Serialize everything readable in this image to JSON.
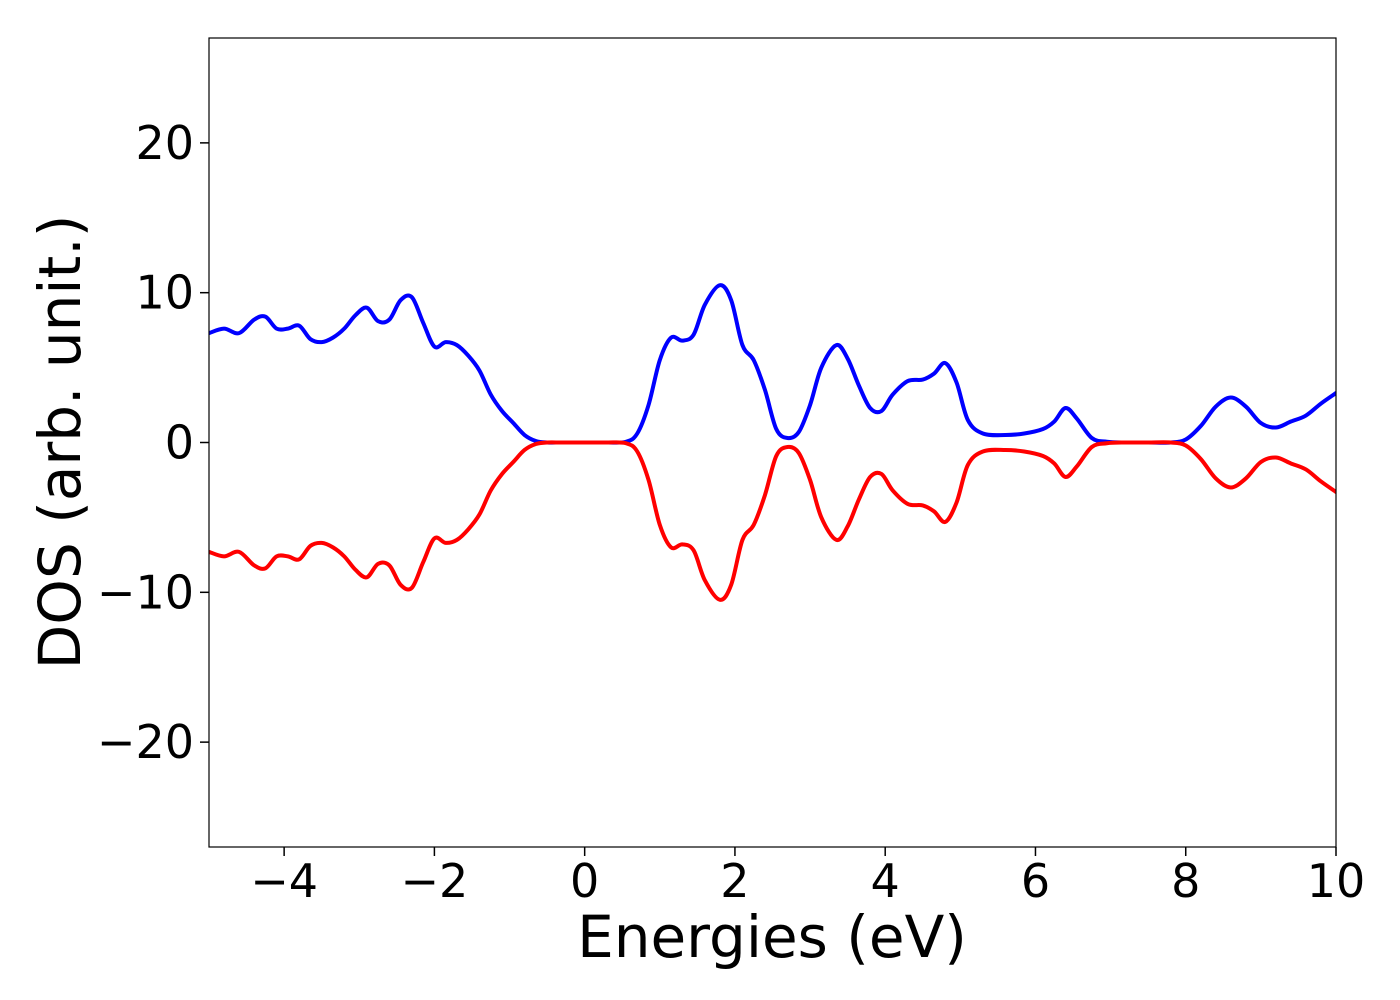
{
  "chart_data": {
    "type": "line",
    "title": "",
    "xlabel": "Energies (eV)",
    "ylabel": "DOS (arb. unit.)",
    "xlim": [
      -5,
      10
    ],
    "ylim": [
      -27,
      27
    ],
    "xticks": [
      -4,
      -2,
      0,
      2,
      4,
      6,
      8,
      10
    ],
    "xtick_labels": [
      "−4",
      "−2",
      "0",
      "2",
      "4",
      "6",
      "8",
      "10"
    ],
    "yticks": [
      -20,
      -10,
      0,
      10,
      20
    ],
    "ytick_labels": [
      "−20",
      "−10",
      "0",
      "10",
      "20"
    ],
    "grid": false,
    "legend": "none",
    "series": [
      {
        "color": "#0000ff",
        "x": [
          -5.0,
          -4.8,
          -4.6,
          -4.4,
          -4.25,
          -4.1,
          -3.95,
          -3.8,
          -3.65,
          -3.5,
          -3.35,
          -3.2,
          -3.05,
          -2.9,
          -2.75,
          -2.6,
          -2.45,
          -2.3,
          -2.15,
          -2.0,
          -1.85,
          -1.7,
          -1.55,
          -1.4,
          -1.25,
          -1.1,
          -0.95,
          -0.8,
          -0.65,
          -0.5,
          -0.3,
          0.0,
          0.3,
          0.55,
          0.7,
          0.85,
          1.0,
          1.15,
          1.3,
          1.45,
          1.6,
          1.8,
          1.95,
          2.1,
          2.25,
          2.4,
          2.55,
          2.7,
          2.85,
          3.0,
          3.15,
          3.35,
          3.5,
          3.65,
          3.8,
          3.95,
          4.1,
          4.3,
          4.5,
          4.65,
          4.8,
          4.95,
          5.1,
          5.3,
          5.6,
          5.85,
          6.1,
          6.25,
          6.4,
          6.55,
          6.75,
          6.95,
          7.2,
          7.5,
          7.8,
          8.0,
          8.2,
          8.4,
          8.6,
          8.8,
          9.0,
          9.2,
          9.4,
          9.6,
          9.8,
          10.0
        ],
        "y": [
          7.3,
          7.6,
          7.3,
          8.2,
          8.4,
          7.6,
          7.6,
          7.8,
          6.9,
          6.7,
          7.0,
          7.6,
          8.5,
          9.0,
          8.1,
          8.2,
          9.5,
          9.7,
          8.0,
          6.4,
          6.7,
          6.5,
          5.8,
          4.8,
          3.2,
          2.1,
          1.3,
          0.5,
          0.1,
          0.0,
          0.0,
          0.0,
          0.0,
          0.05,
          0.6,
          2.5,
          5.5,
          7.0,
          6.8,
          7.2,
          9.2,
          10.5,
          9.5,
          6.5,
          5.5,
          3.5,
          0.9,
          0.3,
          0.7,
          2.5,
          5.0,
          6.5,
          5.6,
          3.8,
          2.3,
          2.1,
          3.2,
          4.1,
          4.2,
          4.6,
          5.3,
          4.0,
          1.5,
          0.6,
          0.5,
          0.6,
          0.9,
          1.4,
          2.3,
          1.6,
          0.3,
          0.05,
          0.0,
          0.0,
          0.0,
          0.2,
          1.1,
          2.4,
          3.0,
          2.4,
          1.3,
          1.0,
          1.4,
          1.8,
          2.6,
          3.3
        ]
      },
      {
        "color": "#ff0000",
        "x": [
          -5.0,
          -4.8,
          -4.6,
          -4.4,
          -4.25,
          -4.1,
          -3.95,
          -3.8,
          -3.65,
          -3.5,
          -3.35,
          -3.2,
          -3.05,
          -2.9,
          -2.75,
          -2.6,
          -2.45,
          -2.3,
          -2.15,
          -2.0,
          -1.85,
          -1.7,
          -1.55,
          -1.4,
          -1.25,
          -1.1,
          -0.95,
          -0.8,
          -0.65,
          -0.5,
          -0.3,
          0.0,
          0.3,
          0.55,
          0.7,
          0.85,
          1.0,
          1.15,
          1.3,
          1.45,
          1.6,
          1.8,
          1.95,
          2.1,
          2.25,
          2.4,
          2.55,
          2.7,
          2.85,
          3.0,
          3.15,
          3.35,
          3.5,
          3.65,
          3.8,
          3.95,
          4.1,
          4.3,
          4.5,
          4.65,
          4.8,
          4.95,
          5.1,
          5.3,
          5.6,
          5.85,
          6.1,
          6.25,
          6.4,
          6.55,
          6.75,
          6.95,
          7.2,
          7.5,
          7.8,
          8.0,
          8.2,
          8.4,
          8.6,
          8.8,
          9.0,
          9.2,
          9.4,
          9.6,
          9.8,
          10.0
        ],
        "y": [
          -7.3,
          -7.6,
          -7.3,
          -8.2,
          -8.4,
          -7.6,
          -7.6,
          -7.8,
          -6.9,
          -6.7,
          -7.0,
          -7.6,
          -8.5,
          -9.0,
          -8.1,
          -8.2,
          -9.5,
          -9.7,
          -8.0,
          -6.4,
          -6.7,
          -6.5,
          -5.8,
          -4.8,
          -3.2,
          -2.1,
          -1.3,
          -0.5,
          -0.1,
          0.0,
          0.0,
          0.0,
          0.0,
          -0.05,
          -0.6,
          -2.5,
          -5.5,
          -7.0,
          -6.8,
          -7.2,
          -9.2,
          -10.5,
          -9.5,
          -6.5,
          -5.5,
          -3.5,
          -0.9,
          -0.3,
          -0.7,
          -2.5,
          -5.0,
          -6.5,
          -5.6,
          -3.8,
          -2.3,
          -2.1,
          -3.2,
          -4.1,
          -4.2,
          -4.6,
          -5.3,
          -4.0,
          -1.5,
          -0.6,
          -0.5,
          -0.6,
          -0.9,
          -1.4,
          -2.3,
          -1.6,
          -0.3,
          -0.05,
          0.0,
          0.0,
          0.0,
          -0.2,
          -1.1,
          -2.4,
          -3.0,
          -2.4,
          -1.3,
          -1.0,
          -1.4,
          -1.8,
          -2.6,
          -3.3
        ]
      }
    ]
  }
}
